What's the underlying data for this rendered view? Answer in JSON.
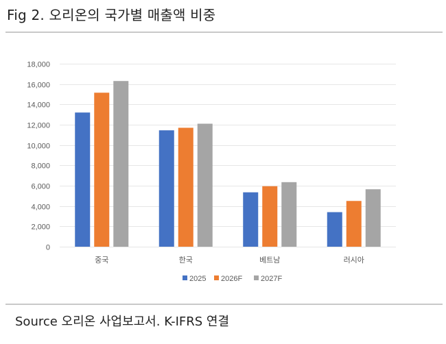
{
  "header": {
    "title": "Fig 2. 오리온의 국가별 매출액 비중"
  },
  "footer": {
    "source": "Source 오리온 사업보고서. K-IFRS 연결"
  },
  "colors": {
    "2025": "#4472C4",
    "2026F": "#ED7D31",
    "2027F": "#A5A5A5",
    "gridline": "#E6E6E6",
    "axis_text": "#595959"
  },
  "chart_data": {
    "type": "bar",
    "title": "Fig 2. 오리온의 국가별 매출액 비중",
    "xlabel": "",
    "ylabel": "",
    "categories": [
      "중국",
      "한국",
      "베트남",
      "러시아"
    ],
    "series": [
      {
        "name": "2025",
        "color": "#4472C4",
        "values": [
          13200,
          11450,
          5350,
          3400
        ]
      },
      {
        "name": "2026F",
        "color": "#ED7D31",
        "values": [
          15150,
          11700,
          5950,
          4500
        ]
      },
      {
        "name": "2027F",
        "color": "#A5A5A5",
        "values": [
          16300,
          12100,
          6350,
          5650
        ]
      }
    ],
    "ylim": [
      0,
      18000
    ],
    "yticks": [
      0,
      2000,
      4000,
      6000,
      8000,
      10000,
      12000,
      14000,
      16000,
      18000
    ],
    "ytick_labels": [
      "0",
      "2,000",
      "4,000",
      "6,000",
      "8,000",
      "10,000",
      "12,000",
      "14,000",
      "16,000",
      "18,000"
    ],
    "grid": true,
    "legend_position": "bottom"
  }
}
